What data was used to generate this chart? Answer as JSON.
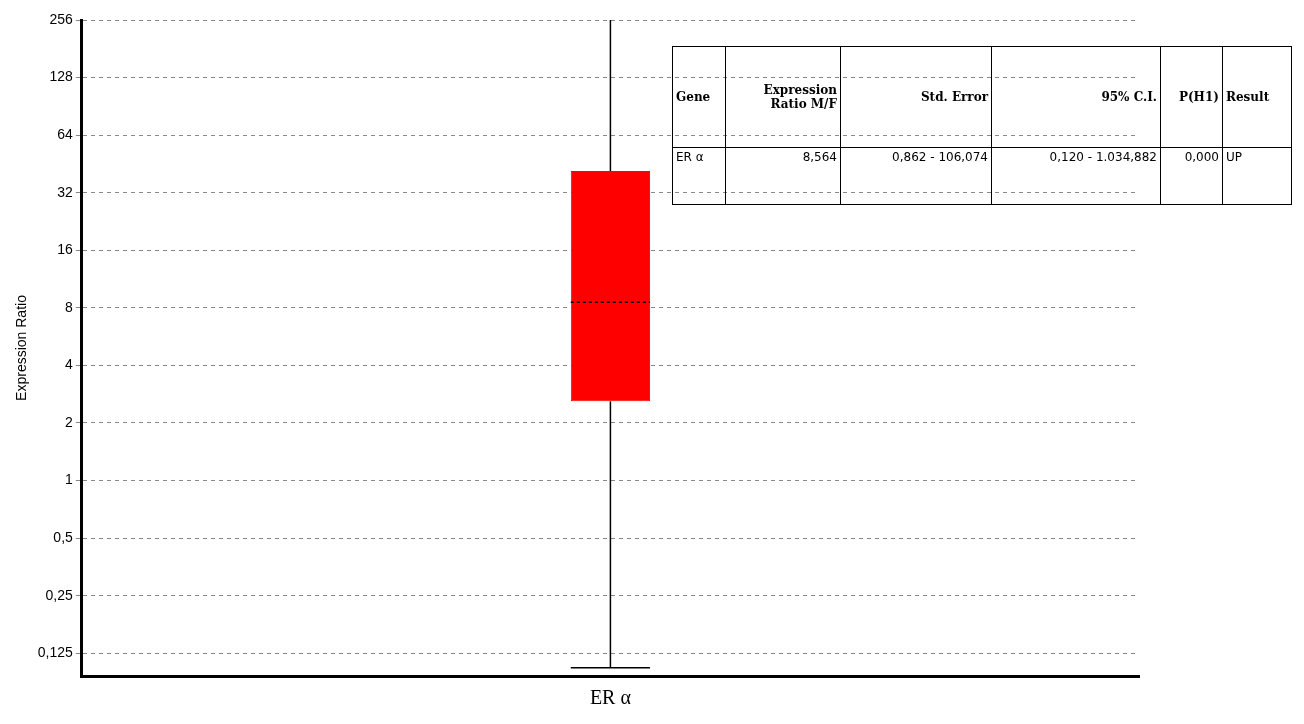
{
  "chart_data": {
    "type": "box",
    "ylabel": "Expression Ratio",
    "categories": [
      "ER α"
    ],
    "color": "#ff0000",
    "log": "y",
    "grid": "y",
    "ylim": [
      0.095,
      256
    ],
    "yticks": [
      {
        "value": 0.125,
        "label": "0,125"
      },
      {
        "value": 0.25,
        "label": "0,25"
      },
      {
        "value": 0.5,
        "label": "0,5"
      },
      1,
      2,
      4,
      8,
      16,
      32,
      64,
      128,
      256
    ],
    "boxes": [
      {
        "low": 0.105,
        "q1": 2.6,
        "median": 8.564,
        "q3": 41.6,
        "high": 256
      }
    ],
    "annotations": [
      "Gene",
      "Expression Ratio M/F",
      "Std. Error",
      "95% C.I.",
      "P(H1)",
      "Result",
      "ER α",
      "8,564",
      "0,862 - 106,074",
      "0,120 - 1.034,882",
      "0,000",
      "UP"
    ]
  }
}
